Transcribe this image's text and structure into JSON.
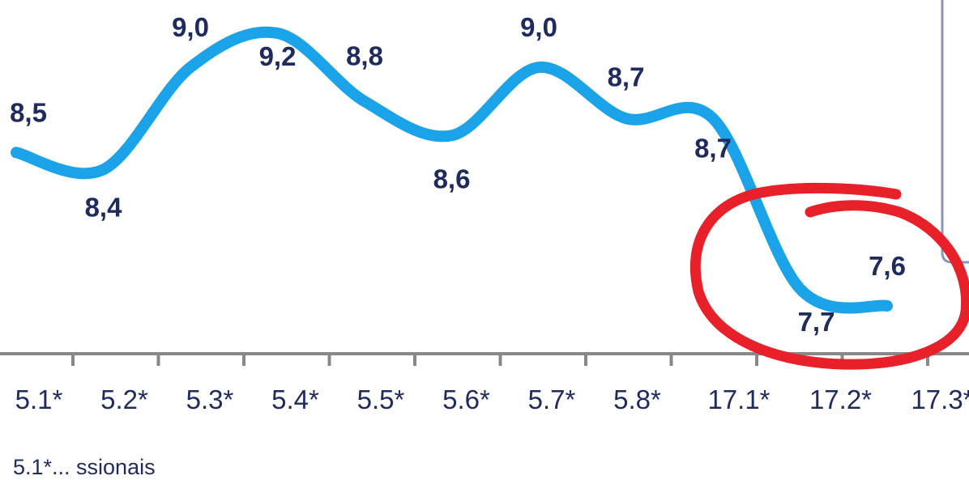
{
  "chart_data": {
    "type": "line",
    "categories": [
      "5.1*",
      "5.2*",
      "5.3*",
      "5.4*",
      "5.5*",
      "5.6*",
      "5.7*",
      "5.8*",
      "17.1*",
      "17.2*",
      "17.3*"
    ],
    "values": [
      8.5,
      8.4,
      9.0,
      9.2,
      8.8,
      8.6,
      9.0,
      8.7,
      8.7,
      7.7,
      7.6
    ],
    "value_labels": [
      "8,5",
      "8,4",
      "9,0",
      "9,2",
      "8,8",
      "8,6",
      "9,0",
      "8,7",
      "8,7",
      "7,7",
      "7,6"
    ],
    "title": "",
    "xlabel": "",
    "ylabel": "",
    "grid": false,
    "colors": {
      "line": "#1aa3e8",
      "labels": "#1f2a5e",
      "axis": "#888888",
      "annotation": "#e8202a",
      "panel": "#8a96b8"
    },
    "annotation": "red hand-drawn circle around the last two points"
  },
  "footnote": "5.1*... ssionais"
}
